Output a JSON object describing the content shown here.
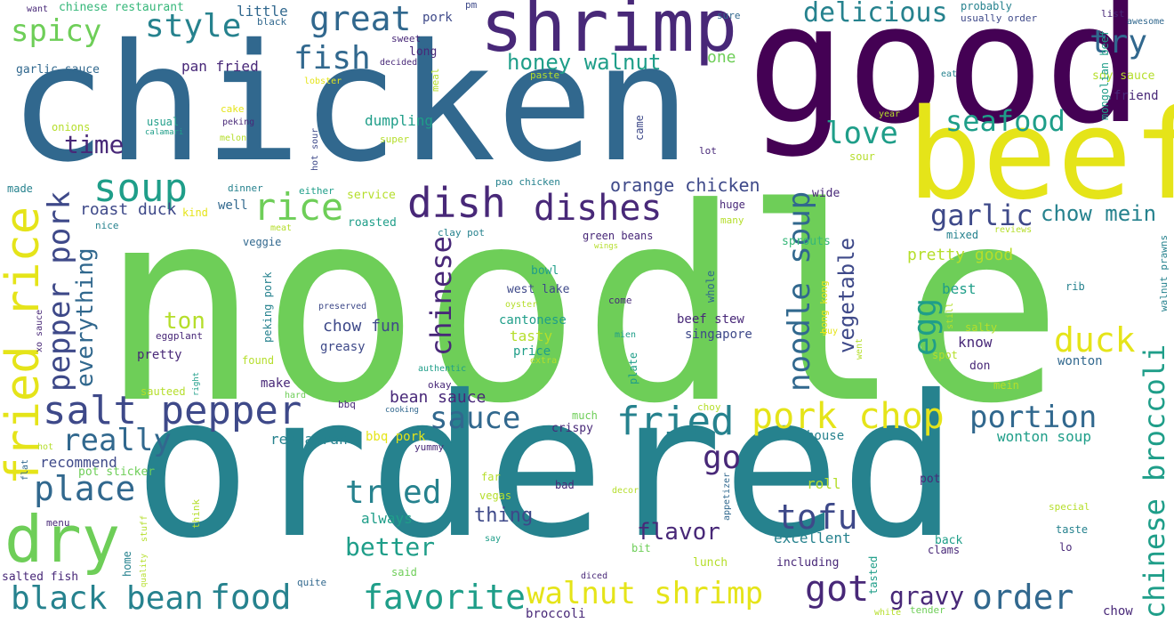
{
  "palette": {
    "p0": "#440154",
    "p1": "#482878",
    "p2": "#3e4989",
    "p3": "#31688e",
    "p4": "#26828e",
    "p5": "#1f9e89",
    "p6": "#35b779",
    "p7": "#6ece58",
    "p8": "#b5de2b",
    "p9": "#e5e419"
  },
  "words": {
    "noodle": "noodle",
    "chicken": "chicken",
    "ordered": "ordered",
    "good": "good",
    "beef": "beef",
    "shrimp": "shrimp",
    "dry": "dry",
    "fried_rice": "fried rice",
    "salt_pepper": "salt pepper",
    "soup": "soup",
    "rice": "rice",
    "dish": "dish",
    "dishes": "dishes",
    "great": "great",
    "fish": "fish",
    "style": "style",
    "spicy": "spicy",
    "delicious": "delicious",
    "try": "try",
    "honey_walnut": "honey walnut",
    "seafood": "seafood",
    "love": "love",
    "noodle_soup": "noodle soup",
    "garlic": "garlic",
    "chow_mein": "chow mein",
    "pepper_pork": "pepper pork",
    "chinese": "chinese",
    "pork_chop": "pork chop",
    "fried": "fried",
    "duck": "duck",
    "chinese_broccoli": "chinese broccoli",
    "egg": "egg",
    "portion": "portion",
    "place": "place",
    "black_bean": "black bean",
    "food": "food",
    "favorite": "favorite",
    "walnut_shrimp": "walnut shrimp",
    "got": "got",
    "order": "order",
    "tofu": "tofu",
    "tried": "tried",
    "sauce": "sauce",
    "really": "really",
    "go": "go",
    "gravy": "gravy",
    "time": "time",
    "everything": "everything",
    "vegetable": "vegetable",
    "better": "better",
    "flavor": "flavor",
    "ton": "ton",
    "thing": "thing",
    "orange_chicken": "orange chicken",
    "roast_duck": "roast duck",
    "bean_sauce": "bean sauce",
    "chow_fun": "chow fun",
    "pretty_good": "pretty good",
    "wonton_soup": "wonton soup",
    "restaurant": "restaurant",
    "recommend": "recommend",
    "excellent": "excellent",
    "always": "always",
    "roll": "roll",
    "wonton": "wonton",
    "know": "know",
    "best": "best",
    "make": "make",
    "greasy": "greasy",
    "pretty": "pretty",
    "beef_stew": "beef stew",
    "singapore": "singapore",
    "cantonese": "cantonese",
    "tasty": "tasty",
    "price": "price",
    "bowl": "bowl",
    "west_lake": "west lake",
    "chinese_restaurant": "chinese restaurant",
    "pan_fried": "pan fried",
    "garlic_sauce": "garlic sauce",
    "little": "little",
    "black": "black",
    "pork": "pork",
    "sweet": "sweet",
    "long": "long",
    "decided": "decided",
    "pm": "pm",
    "sure": "sure",
    "probably": "probably",
    "usually_order": "usually order",
    "list": "list",
    "awesome": "awesome",
    "want": "want",
    "soy_sauce": "soy sauce",
    "friend": "friend",
    "mongolian_beef": "mongolian beef",
    "one": "one",
    "dumpling": "dumpling",
    "came": "came",
    "lot": "lot",
    "sour": "sour",
    "year": "year",
    "eat": "eat",
    "paste": "paste",
    "lobster": "lobster",
    "meal": "meal",
    "usual": "usual",
    "peking": "peking",
    "cake": "cake",
    "calamari": "calamari",
    "onions": "onions",
    "melon": "melon",
    "super": "super",
    "hot_sour": "hot sour",
    "made": "made",
    "dinner": "dinner",
    "either": "either",
    "service": "service",
    "pao_chicken": "pao chicken",
    "wide": "wide",
    "huge": "huge",
    "kind": "kind",
    "well": "well",
    "many": "many",
    "roasted": "roasted",
    "meat": "meat",
    "nice": "nice",
    "veggie": "veggie",
    "clay_pot": "clay pot",
    "green_beans": "green beans",
    "wings": "wings",
    "mixed": "mixed",
    "reviews": "reviews",
    "sprouts": "sprouts",
    "peking_pork": "peking pork",
    "whole": "whole",
    "hong_kong": "hong kong",
    "walnut_prawns": "walnut prawns",
    "rib": "rib",
    "preserved": "preserved",
    "oyster": "oyster",
    "come": "come",
    "eggplant": "eggplant",
    "mien": "mien",
    "xo_sauce": "xo sauce",
    "found": "found",
    "authentic": "authentic",
    "extra": "extra",
    "guy": "guy",
    "still": "still",
    "salty": "salty",
    "went": "went",
    "spot": "spot",
    "don": "don",
    "right": "right",
    "sauteed": "sauteed",
    "hard": "hard",
    "okay": "okay",
    "plate": "plate",
    "mein": "mein",
    "bbq": "bbq",
    "cooking": "cooking",
    "choy": "choy",
    "much": "much",
    "house": "house",
    "crispy": "crispy",
    "bbq_pork": "bbq pork",
    "hot": "hot",
    "yummy": "yummy",
    "flat": "flat",
    "pot_sticker": "pot sticker",
    "far": "far",
    "bad": "bad",
    "decor": "decor",
    "pot": "pot",
    "vegas": "vegas",
    "appetizer": "appetizer",
    "special": "special",
    "think": "think",
    "menu": "menu",
    "stuff": "stuff",
    "say": "say",
    "taste": "taste",
    "back": "back",
    "bit": "bit",
    "clams": "clams",
    "lo": "lo",
    "home": "home",
    "quality": "quality",
    "said": "said",
    "lunch": "lunch",
    "including": "including",
    "tasted": "tasted",
    "diced": "diced",
    "salted_fish": "salted fish",
    "quite": "quite",
    "broccoli": "broccoli",
    "white": "white",
    "tender": "tender",
    "chow": "chow"
  }
}
